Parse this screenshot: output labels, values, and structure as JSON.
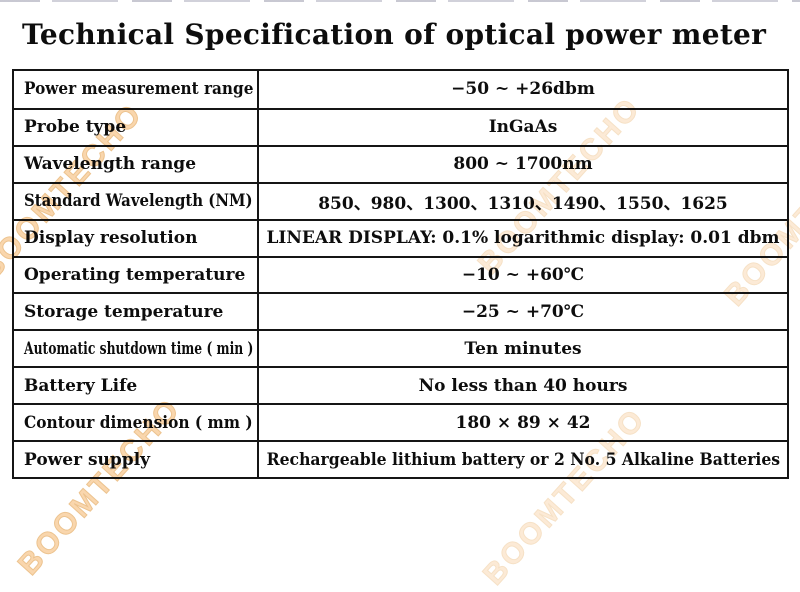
{
  "page": {
    "title": "Technical Specification of optical power meter"
  },
  "watermark": {
    "text": "BOOMTECHO",
    "color": "#f0a73f"
  },
  "table": {
    "rows": [
      {
        "label": "Power measurement range",
        "value": "−50 ~ +26dbm"
      },
      {
        "label": "Probe type",
        "value": "InGaAs"
      },
      {
        "label": "Wavelength range",
        "value": "800 ~ 1700nm"
      },
      {
        "label": "Standard Wavelength (NM)",
        "value": "850、980、1300、1310、1490、1550、1625"
      },
      {
        "label": "Display resolution",
        "value": "LINEAR DISPLAY: 0.1% logarithmic display: 0.01 dbm"
      },
      {
        "label": "Operating temperature",
        "value": "−10 ~ +60℃"
      },
      {
        "label": "Storage temperature",
        "value": "−25 ~ +70℃"
      },
      {
        "label": "Automatic shutdown time ( min )",
        "value": "Ten minutes"
      },
      {
        "label": "Battery Life",
        "value": "No less than 40 hours"
      },
      {
        "label": "Contour dimension ( mm )",
        "value": "180 × 89 × 42"
      },
      {
        "label": "Power supply",
        "value": "Rechargeable lithium battery or 2 No. 5 Alkaline Batteries"
      }
    ]
  }
}
